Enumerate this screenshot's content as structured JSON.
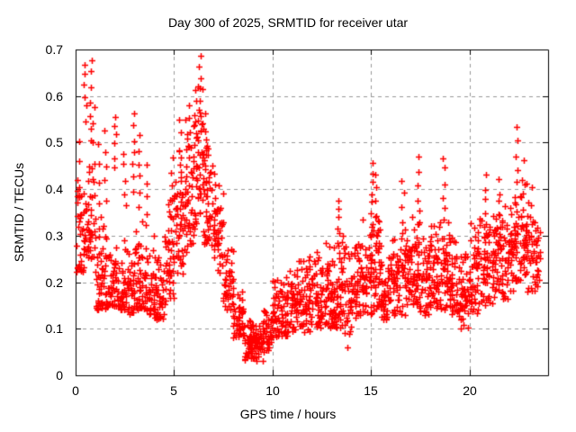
{
  "chart_data": {
    "type": "scatter",
    "title": "Day 300 of 2025, SRMTID for receiver utar",
    "xlabel": "GPS time / hours",
    "ylabel": "SRMTID / TECUs",
    "xlim": [
      0,
      24
    ],
    "ylim": [
      0,
      0.7
    ],
    "xticks": [
      0,
      5,
      10,
      15,
      20
    ],
    "yticks": [
      0,
      0.1,
      0.2,
      0.3,
      0.4,
      0.5,
      0.6,
      0.7
    ],
    "grid": {
      "visible": true,
      "style": "dashed",
      "color": "#999999"
    },
    "axis_color": "#000000",
    "background_color": "#ffffff",
    "marker": {
      "glyph": "+",
      "color": "#ff0000",
      "size": 7
    },
    "series": [
      {
        "name": "SRMTID",
        "x_start_hour": 0.0,
        "x_end_hour": 23.6,
        "y_min_observed": 0.03,
        "y_max_observed": 0.685,
        "bins": [
          [
            0.0,
            0.5,
            40,
            0.22,
            0.5,
            0.28
          ],
          [
            0.5,
            1.0,
            40,
            0.25,
            0.55,
            0.34
          ],
          [
            1.0,
            1.5,
            45,
            0.14,
            0.4,
            0.2
          ],
          [
            1.5,
            2.0,
            42,
            0.14,
            0.36,
            0.19
          ],
          [
            2.0,
            2.5,
            42,
            0.14,
            0.34,
            0.18
          ],
          [
            2.5,
            3.0,
            42,
            0.13,
            0.32,
            0.17
          ],
          [
            3.0,
            3.5,
            45,
            0.14,
            0.38,
            0.2
          ],
          [
            3.5,
            4.0,
            42,
            0.13,
            0.34,
            0.18
          ],
          [
            4.0,
            4.5,
            42,
            0.12,
            0.3,
            0.16
          ],
          [
            4.5,
            5.0,
            45,
            0.15,
            0.4,
            0.24
          ],
          [
            5.0,
            5.5,
            45,
            0.2,
            0.5,
            0.32
          ],
          [
            5.5,
            6.0,
            45,
            0.25,
            0.56,
            0.38
          ],
          [
            6.0,
            6.5,
            48,
            0.3,
            0.62,
            0.45
          ],
          [
            6.5,
            7.0,
            45,
            0.28,
            0.55,
            0.38
          ],
          [
            7.0,
            7.5,
            42,
            0.22,
            0.42,
            0.3
          ],
          [
            7.5,
            8.0,
            40,
            0.14,
            0.3,
            0.2
          ],
          [
            8.0,
            8.5,
            45,
            0.08,
            0.2,
            0.12
          ],
          [
            8.5,
            9.0,
            50,
            0.03,
            0.13,
            0.07
          ],
          [
            9.0,
            9.5,
            50,
            0.03,
            0.12,
            0.07
          ],
          [
            9.5,
            10.0,
            45,
            0.05,
            0.15,
            0.09
          ],
          [
            10.0,
            10.5,
            45,
            0.08,
            0.22,
            0.13
          ],
          [
            10.5,
            11.0,
            45,
            0.08,
            0.24,
            0.14
          ],
          [
            11.0,
            11.5,
            45,
            0.09,
            0.28,
            0.15
          ],
          [
            11.5,
            12.0,
            45,
            0.09,
            0.28,
            0.16
          ],
          [
            12.0,
            12.5,
            45,
            0.1,
            0.3,
            0.17
          ],
          [
            12.5,
            13.0,
            45,
            0.1,
            0.3,
            0.17
          ],
          [
            13.0,
            13.5,
            48,
            0.1,
            0.32,
            0.18
          ],
          [
            13.5,
            14.0,
            45,
            0.06,
            0.3,
            0.17
          ],
          [
            14.0,
            14.5,
            45,
            0.12,
            0.32,
            0.19
          ],
          [
            14.5,
            15.0,
            45,
            0.13,
            0.34,
            0.21
          ],
          [
            15.0,
            15.5,
            48,
            0.13,
            0.38,
            0.22
          ],
          [
            15.5,
            16.0,
            45,
            0.12,
            0.28,
            0.18
          ],
          [
            16.0,
            16.5,
            45,
            0.12,
            0.32,
            0.19
          ],
          [
            16.5,
            17.0,
            45,
            0.13,
            0.34,
            0.21
          ],
          [
            17.0,
            17.5,
            46,
            0.14,
            0.38,
            0.22
          ],
          [
            17.5,
            18.0,
            45,
            0.13,
            0.32,
            0.2
          ],
          [
            18.0,
            18.5,
            45,
            0.14,
            0.36,
            0.22
          ],
          [
            18.5,
            19.0,
            46,
            0.14,
            0.38,
            0.22
          ],
          [
            19.0,
            19.5,
            45,
            0.12,
            0.32,
            0.19
          ],
          [
            19.5,
            20.0,
            45,
            0.1,
            0.3,
            0.18
          ],
          [
            20.0,
            20.5,
            45,
            0.13,
            0.34,
            0.21
          ],
          [
            20.5,
            21.0,
            46,
            0.15,
            0.36,
            0.23
          ],
          [
            21.0,
            21.5,
            45,
            0.15,
            0.36,
            0.24
          ],
          [
            21.5,
            22.0,
            45,
            0.16,
            0.38,
            0.26
          ],
          [
            22.0,
            22.5,
            46,
            0.18,
            0.4,
            0.28
          ],
          [
            22.5,
            23.0,
            46,
            0.15,
            0.42,
            0.28
          ],
          [
            23.0,
            23.6,
            40,
            0.12,
            0.36,
            0.26
          ]
        ],
        "spikes": [
          [
            0.15,
            0.3,
            0.5,
            6
          ],
          [
            0.5,
            0.55,
            0.67,
            6
          ],
          [
            0.75,
            0.5,
            0.677,
            7
          ],
          [
            0.9,
            0.42,
            0.58,
            5
          ],
          [
            1.2,
            0.32,
            0.5,
            5
          ],
          [
            1.5,
            0.38,
            0.52,
            5
          ],
          [
            2.0,
            0.45,
            0.56,
            6
          ],
          [
            2.5,
            0.36,
            0.48,
            5
          ],
          [
            2.95,
            0.4,
            0.56,
            7
          ],
          [
            3.2,
            0.36,
            0.52,
            6
          ],
          [
            3.6,
            0.32,
            0.45,
            5
          ],
          [
            4.9,
            0.34,
            0.47,
            5
          ],
          [
            5.3,
            0.42,
            0.55,
            5
          ],
          [
            5.8,
            0.44,
            0.58,
            6
          ],
          [
            6.15,
            0.45,
            0.62,
            6
          ],
          [
            6.35,
            0.52,
            0.685,
            8
          ],
          [
            6.6,
            0.42,
            0.56,
            5
          ],
          [
            7.1,
            0.33,
            0.43,
            5
          ],
          [
            13.35,
            0.28,
            0.38,
            6
          ],
          [
            15.05,
            0.3,
            0.46,
            8
          ],
          [
            15.3,
            0.28,
            0.43,
            6
          ],
          [
            16.6,
            0.3,
            0.42,
            5
          ],
          [
            17.4,
            0.32,
            0.47,
            6
          ],
          [
            18.7,
            0.33,
            0.47,
            6
          ],
          [
            20.8,
            0.3,
            0.43,
            6
          ],
          [
            21.5,
            0.32,
            0.42,
            5
          ],
          [
            22.4,
            0.35,
            0.535,
            7
          ],
          [
            22.7,
            0.32,
            0.46,
            5
          ],
          [
            23.1,
            0.26,
            0.4,
            5
          ]
        ]
      }
    ]
  }
}
